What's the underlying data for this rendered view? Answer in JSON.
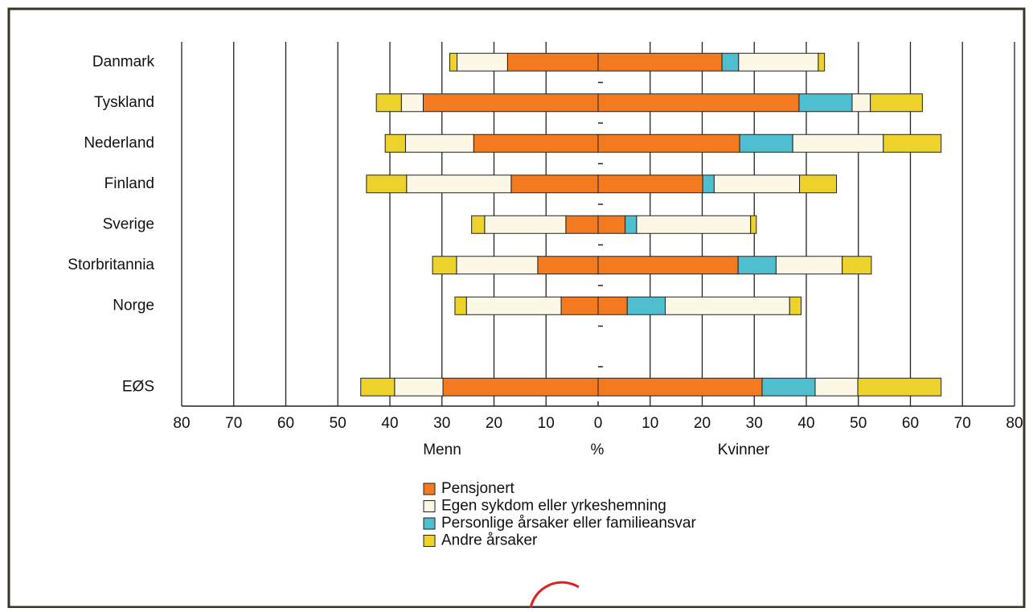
{
  "chart_data": {
    "type": "butterfly_stacked_bar",
    "categories": [
      "Danmark",
      "Tyskland",
      "Nederland",
      "Finland",
      "Sverige",
      "Storbritannia",
      "Norge",
      null,
      "EØS"
    ],
    "series": [
      {
        "name": "Pensjonert",
        "color": "#f47a20",
        "men": [
          -17.4,
          -33.6,
          -23.9,
          -16.7,
          -6.2,
          -11.6,
          -7.1,
          null,
          -29.8
        ],
        "women": [
          23.8,
          38.6,
          27.2,
          20.1,
          5.2,
          26.9,
          5.6,
          null,
          31.5
        ]
      },
      {
        "name": "Personlige årsaker eller familieansvar",
        "color": "#4fbfcf",
        "men": [
          0,
          0,
          0,
          0,
          0,
          0,
          0,
          null,
          0
        ],
        "women": [
          3.2,
          10.2,
          10.2,
          2.2,
          2.2,
          7.3,
          7.3,
          null,
          10.2
        ]
      },
      {
        "name": "Egen sykdom eller yrkeshemning",
        "color": "#fdf7e6",
        "men": [
          -9.7,
          -4.2,
          -13.1,
          -20.1,
          -15.6,
          -15.6,
          -18.2,
          null,
          -9.3
        ],
        "women": [
          15.3,
          3.5,
          17.4,
          16.4,
          21.9,
          12.7,
          23.9,
          null,
          8.2
        ]
      },
      {
        "name": "Andre årsaker",
        "color": "#ecd22a",
        "men": [
          -1.4,
          -4.8,
          -3.9,
          -7.7,
          -2.5,
          -4.6,
          -2.2,
          null,
          -6.5
        ],
        "women": [
          1.2,
          10.0,
          11.1,
          7.1,
          1.1,
          5.6,
          2.2,
          null,
          16.0
        ]
      }
    ],
    "legend_order": [
      0,
      2,
      1,
      3
    ],
    "xlim": [
      -80,
      80
    ],
    "xticks": [
      {
        "value": -80,
        "label": "80"
      },
      {
        "value": -70,
        "label": "70"
      },
      {
        "value": -60,
        "label": "60"
      },
      {
        "value": -50,
        "label": "50"
      },
      {
        "value": -40,
        "label": "40"
      },
      {
        "value": -30,
        "label": "30"
      },
      {
        "value": -20,
        "label": "20"
      },
      {
        "value": -10,
        "label": "10"
      },
      0,
      10,
      20,
      30,
      40,
      50,
      60,
      70,
      80
    ],
    "xlabel_left": "Menn",
    "xlabel": "%",
    "xlabel_right": "Kvinner",
    "grid": true
  }
}
